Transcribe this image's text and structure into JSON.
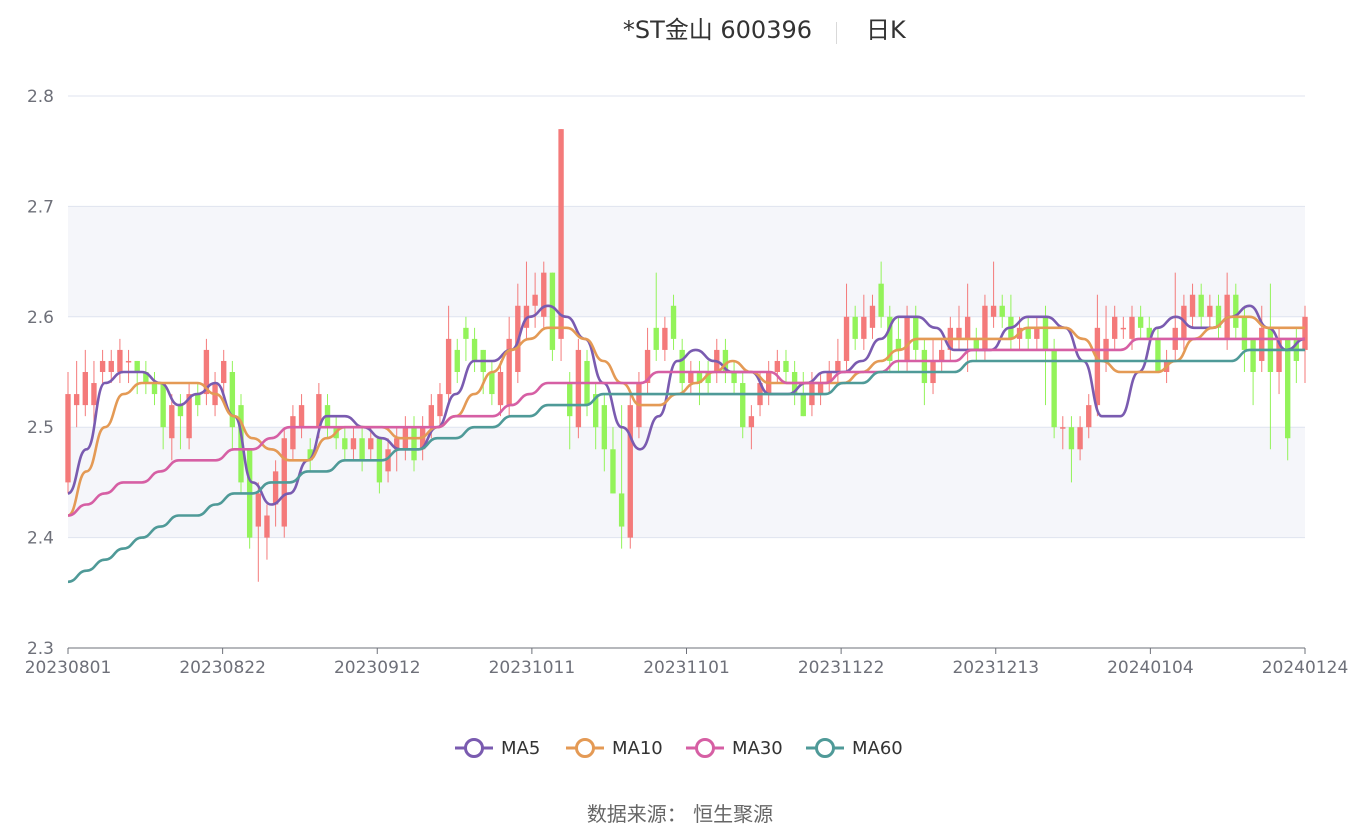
{
  "header": {
    "title": "*ST金山 600396",
    "subtitle": "日K"
  },
  "footer": {
    "source": "数据来源：  恒生聚源"
  },
  "colors": {
    "up": "#f47a7a",
    "down": "#93f35a",
    "ma5": "#7a5bb0",
    "ma10": "#e49a55",
    "ma30": "#d65fa4",
    "ma60": "#4f9a98",
    "grid": "#dfe3ef",
    "band": "#f5f6fa"
  },
  "chart_data": {
    "type": "candlestick",
    "title": "*ST金山 600396",
    "subtitle": "日K",
    "ylim": [
      2.3,
      2.8
    ],
    "y_ticks": [
      2.3,
      2.4,
      2.5,
      2.6,
      2.7,
      2.8
    ],
    "x_tick_labels": [
      "20230801",
      "20230822",
      "20230912",
      "20231011",
      "20231101",
      "20231122",
      "20231213",
      "20240104",
      "20240124"
    ],
    "legend": [
      {
        "name": "MA5",
        "color": "#7a5bb0"
      },
      {
        "name": "MA10",
        "color": "#e49a55"
      },
      {
        "name": "MA30",
        "color": "#d65fa4"
      },
      {
        "name": "MA60",
        "color": "#4f9a98"
      }
    ],
    "legend_position": "bottom",
    "grid": true,
    "candles_ohlc": [
      [
        2.45,
        2.53,
        2.44,
        2.55
      ],
      [
        2.52,
        2.53,
        2.5,
        2.56
      ],
      [
        2.52,
        2.55,
        2.51,
        2.57
      ],
      [
        2.52,
        2.54,
        2.5,
        2.56
      ],
      [
        2.55,
        2.56,
        2.54,
        2.57
      ],
      [
        2.55,
        2.56,
        2.54,
        2.57
      ],
      [
        2.55,
        2.57,
        2.54,
        2.58
      ],
      [
        2.56,
        2.56,
        2.54,
        2.57
      ],
      [
        2.56,
        2.55,
        2.53,
        2.56
      ],
      [
        2.55,
        2.54,
        2.53,
        2.56
      ],
      [
        2.54,
        2.53,
        2.52,
        2.55
      ],
      [
        2.54,
        2.5,
        2.48,
        2.54
      ],
      [
        2.49,
        2.52,
        2.47,
        2.53
      ],
      [
        2.52,
        2.51,
        2.48,
        2.53
      ],
      [
        2.49,
        2.53,
        2.48,
        2.54
      ],
      [
        2.53,
        2.52,
        2.51,
        2.54
      ],
      [
        2.53,
        2.57,
        2.52,
        2.58
      ],
      [
        2.52,
        2.54,
        2.51,
        2.55
      ],
      [
        2.54,
        2.56,
        2.53,
        2.57
      ],
      [
        2.55,
        2.5,
        2.48,
        2.56
      ],
      [
        2.52,
        2.45,
        2.44,
        2.53
      ],
      [
        2.48,
        2.4,
        2.39,
        2.48
      ],
      [
        2.41,
        2.44,
        2.36,
        2.45
      ],
      [
        2.4,
        2.42,
        2.38,
        2.43
      ],
      [
        2.43,
        2.46,
        2.41,
        2.47
      ],
      [
        2.41,
        2.49,
        2.4,
        2.5
      ],
      [
        2.48,
        2.51,
        2.47,
        2.52
      ],
      [
        2.5,
        2.52,
        2.49,
        2.53
      ],
      [
        2.48,
        2.47,
        2.46,
        2.49
      ],
      [
        2.5,
        2.53,
        2.49,
        2.54
      ],
      [
        2.52,
        2.5,
        2.49,
        2.53
      ],
      [
        2.5,
        2.49,
        2.48,
        2.51
      ],
      [
        2.49,
        2.48,
        2.47,
        2.5
      ],
      [
        2.48,
        2.49,
        2.47,
        2.5
      ],
      [
        2.49,
        2.47,
        2.46,
        2.5
      ],
      [
        2.48,
        2.49,
        2.47,
        2.5
      ],
      [
        2.49,
        2.45,
        2.44,
        2.49
      ],
      [
        2.46,
        2.48,
        2.45,
        2.49
      ],
      [
        2.48,
        2.49,
        2.46,
        2.5
      ],
      [
        2.48,
        2.5,
        2.47,
        2.51
      ],
      [
        2.5,
        2.47,
        2.46,
        2.51
      ],
      [
        2.48,
        2.5,
        2.47,
        2.51
      ],
      [
        2.5,
        2.52,
        2.49,
        2.53
      ],
      [
        2.51,
        2.53,
        2.5,
        2.54
      ],
      [
        2.53,
        2.58,
        2.52,
        2.61
      ],
      [
        2.57,
        2.55,
        2.54,
        2.58
      ],
      [
        2.59,
        2.58,
        2.56,
        2.6
      ],
      [
        2.58,
        2.56,
        2.55,
        2.59
      ],
      [
        2.57,
        2.55,
        2.53,
        2.57
      ],
      [
        2.55,
        2.53,
        2.52,
        2.56
      ],
      [
        2.52,
        2.55,
        2.51,
        2.56
      ],
      [
        2.52,
        2.58,
        2.51,
        2.6
      ],
      [
        2.55,
        2.61,
        2.54,
        2.63
      ],
      [
        2.59,
        2.61,
        2.58,
        2.65
      ],
      [
        2.61,
        2.62,
        2.59,
        2.64
      ],
      [
        2.6,
        2.64,
        2.59,
        2.65
      ],
      [
        2.64,
        2.57,
        2.56,
        2.64
      ],
      [
        2.58,
        2.77,
        2.56,
        2.77
      ],
      [
        2.54,
        2.51,
        2.48,
        2.55
      ],
      [
        2.5,
        2.57,
        2.49,
        2.58
      ],
      [
        2.56,
        2.52,
        2.51,
        2.57
      ],
      [
        2.53,
        2.5,
        2.48,
        2.54
      ],
      [
        2.52,
        2.48,
        2.46,
        2.53
      ],
      [
        2.48,
        2.44,
        2.44,
        2.5
      ],
      [
        2.44,
        2.41,
        2.39,
        2.52
      ],
      [
        2.4,
        2.52,
        2.39,
        2.53
      ],
      [
        2.5,
        2.54,
        2.49,
        2.55
      ],
      [
        2.54,
        2.57,
        2.53,
        2.59
      ],
      [
        2.59,
        2.57,
        2.56,
        2.64
      ],
      [
        2.57,
        2.59,
        2.56,
        2.6
      ],
      [
        2.61,
        2.58,
        2.57,
        2.62
      ],
      [
        2.57,
        2.54,
        2.53,
        2.58
      ],
      [
        2.54,
        2.55,
        2.53,
        2.56
      ],
      [
        2.55,
        2.54,
        2.52,
        2.56
      ],
      [
        2.55,
        2.54,
        2.53,
        2.56
      ],
      [
        2.55,
        2.57,
        2.54,
        2.58
      ],
      [
        2.57,
        2.55,
        2.54,
        2.58
      ],
      [
        2.55,
        2.54,
        2.53,
        2.56
      ],
      [
        2.54,
        2.5,
        2.49,
        2.55
      ],
      [
        2.5,
        2.51,
        2.48,
        2.52
      ],
      [
        2.52,
        2.54,
        2.51,
        2.55
      ],
      [
        2.53,
        2.55,
        2.52,
        2.56
      ],
      [
        2.55,
        2.56,
        2.54,
        2.57
      ],
      [
        2.56,
        2.55,
        2.54,
        2.57
      ],
      [
        2.55,
        2.53,
        2.52,
        2.56
      ],
      [
        2.53,
        2.51,
        2.51,
        2.55
      ],
      [
        2.52,
        2.54,
        2.51,
        2.55
      ],
      [
        2.53,
        2.54,
        2.52,
        2.55
      ],
      [
        2.54,
        2.55,
        2.53,
        2.56
      ],
      [
        2.55,
        2.56,
        2.54,
        2.58
      ],
      [
        2.56,
        2.6,
        2.55,
        2.63
      ],
      [
        2.6,
        2.58,
        2.57,
        2.61
      ],
      [
        2.58,
        2.6,
        2.57,
        2.62
      ],
      [
        2.59,
        2.61,
        2.58,
        2.62
      ],
      [
        2.63,
        2.6,
        2.59,
        2.65
      ],
      [
        2.6,
        2.56,
        2.55,
        2.61
      ],
      [
        2.58,
        2.57,
        2.55,
        2.6
      ],
      [
        2.56,
        2.6,
        2.55,
        2.61
      ],
      [
        2.6,
        2.57,
        2.56,
        2.61
      ],
      [
        2.57,
        2.54,
        2.52,
        2.58
      ],
      [
        2.54,
        2.56,
        2.53,
        2.58
      ],
      [
        2.56,
        2.57,
        2.55,
        2.58
      ],
      [
        2.57,
        2.59,
        2.56,
        2.6
      ],
      [
        2.58,
        2.59,
        2.57,
        2.61
      ],
      [
        2.58,
        2.6,
        2.55,
        2.63
      ],
      [
        2.58,
        2.57,
        2.56,
        2.59
      ],
      [
        2.57,
        2.61,
        2.56,
        2.62
      ],
      [
        2.6,
        2.61,
        2.59,
        2.65
      ],
      [
        2.61,
        2.6,
        2.59,
        2.62
      ],
      [
        2.6,
        2.58,
        2.57,
        2.62
      ],
      [
        2.58,
        2.59,
        2.57,
        2.6
      ],
      [
        2.59,
        2.58,
        2.57,
        2.6
      ],
      [
        2.58,
        2.59,
        2.57,
        2.6
      ],
      [
        2.6,
        2.57,
        2.52,
        2.61
      ],
      [
        2.57,
        2.5,
        2.49,
        2.58
      ],
      [
        2.5,
        2.5,
        2.48,
        2.51
      ],
      [
        2.5,
        2.48,
        2.45,
        2.51
      ],
      [
        2.48,
        2.5,
        2.47,
        2.51
      ],
      [
        2.5,
        2.52,
        2.49,
        2.53
      ],
      [
        2.52,
        2.59,
        2.51,
        2.62
      ],
      [
        2.56,
        2.58,
        2.55,
        2.61
      ],
      [
        2.58,
        2.6,
        2.57,
        2.61
      ],
      [
        2.59,
        2.59,
        2.58,
        2.6
      ],
      [
        2.58,
        2.6,
        2.57,
        2.61
      ],
      [
        2.6,
        2.59,
        2.58,
        2.61
      ],
      [
        2.59,
        2.58,
        2.57,
        2.6
      ],
      [
        2.58,
        2.55,
        2.55,
        2.59
      ],
      [
        2.55,
        2.56,
        2.54,
        2.57
      ],
      [
        2.57,
        2.59,
        2.56,
        2.64
      ],
      [
        2.58,
        2.61,
        2.57,
        2.62
      ],
      [
        2.6,
        2.62,
        2.59,
        2.63
      ],
      [
        2.62,
        2.6,
        2.59,
        2.63
      ],
      [
        2.6,
        2.61,
        2.59,
        2.62
      ],
      [
        2.61,
        2.59,
        2.58,
        2.62
      ],
      [
        2.58,
        2.62,
        2.57,
        2.64
      ],
      [
        2.62,
        2.59,
        2.58,
        2.63
      ],
      [
        2.6,
        2.57,
        2.55,
        2.61
      ],
      [
        2.58,
        2.55,
        2.52,
        2.58
      ],
      [
        2.56,
        2.59,
        2.55,
        2.61
      ],
      [
        2.59,
        2.55,
        2.48,
        2.63
      ],
      [
        2.55,
        2.58,
        2.53,
        2.59
      ],
      [
        2.58,
        2.49,
        2.47,
        2.58
      ],
      [
        2.58,
        2.56,
        2.54,
        2.59
      ],
      [
        2.57,
        2.6,
        2.54,
        2.61
      ]
    ],
    "ma5": [
      2.44,
      2.48,
      2.54,
      2.55,
      2.55,
      2.54,
      2.52,
      2.53,
      2.54,
      2.51,
      2.45,
      2.43,
      2.44,
      2.47,
      2.51,
      2.51,
      2.5,
      2.49,
      2.48,
      2.48,
      2.5,
      2.53,
      2.56,
      2.56,
      2.57,
      2.6,
      2.61,
      2.6,
      2.58,
      2.54,
      2.5,
      2.48,
      2.51,
      2.56,
      2.57,
      2.56,
      2.55,
      2.55,
      2.53,
      2.53,
      2.54,
      2.55,
      2.55,
      2.56,
      2.58,
      2.6,
      2.6,
      2.59,
      2.57,
      2.57,
      2.57,
      2.59,
      2.6,
      2.6,
      2.59,
      2.56,
      2.51,
      2.51,
      2.55,
      2.59,
      2.6,
      2.59,
      2.59,
      2.6,
      2.61,
      2.59,
      2.57,
      2.58
    ],
    "ma10": [
      2.42,
      2.46,
      2.5,
      2.53,
      2.54,
      2.54,
      2.54,
      2.54,
      2.53,
      2.51,
      2.49,
      2.48,
      2.47,
      2.47,
      2.49,
      2.5,
      2.5,
      2.5,
      2.49,
      2.49,
      2.5,
      2.51,
      2.53,
      2.55,
      2.57,
      2.58,
      2.59,
      2.59,
      2.58,
      2.56,
      2.54,
      2.52,
      2.52,
      2.53,
      2.54,
      2.55,
      2.56,
      2.55,
      2.54,
      2.54,
      2.54,
      2.54,
      2.54,
      2.55,
      2.56,
      2.57,
      2.58,
      2.58,
      2.58,
      2.58,
      2.58,
      2.58,
      2.59,
      2.59,
      2.59,
      2.58,
      2.56,
      2.55,
      2.55,
      2.55,
      2.56,
      2.58,
      2.59,
      2.6,
      2.6,
      2.59,
      2.59,
      2.59
    ],
    "ma30": [
      2.42,
      2.43,
      2.44,
      2.45,
      2.45,
      2.46,
      2.47,
      2.47,
      2.47,
      2.48,
      2.48,
      2.49,
      2.5,
      2.5,
      2.5,
      2.5,
      2.5,
      2.5,
      2.5,
      2.5,
      2.5,
      2.51,
      2.51,
      2.51,
      2.52,
      2.53,
      2.54,
      2.54,
      2.54,
      2.54,
      2.54,
      2.54,
      2.55,
      2.55,
      2.55,
      2.55,
      2.55,
      2.55,
      2.55,
      2.54,
      2.54,
      2.54,
      2.55,
      2.55,
      2.55,
      2.56,
      2.56,
      2.56,
      2.56,
      2.57,
      2.57,
      2.57,
      2.57,
      2.57,
      2.57,
      2.57,
      2.57,
      2.57,
      2.58,
      2.58,
      2.58,
      2.58,
      2.58,
      2.58,
      2.58,
      2.58,
      2.58,
      2.58
    ],
    "ma60": [
      2.36,
      2.37,
      2.38,
      2.39,
      2.4,
      2.41,
      2.42,
      2.42,
      2.43,
      2.44,
      2.44,
      2.45,
      2.45,
      2.46,
      2.46,
      2.47,
      2.47,
      2.47,
      2.48,
      2.48,
      2.49,
      2.49,
      2.5,
      2.5,
      2.51,
      2.51,
      2.52,
      2.52,
      2.52,
      2.53,
      2.53,
      2.53,
      2.53,
      2.53,
      2.53,
      2.53,
      2.53,
      2.53,
      2.53,
      2.53,
      2.53,
      2.53,
      2.54,
      2.54,
      2.55,
      2.55,
      2.55,
      2.55,
      2.55,
      2.56,
      2.56,
      2.56,
      2.56,
      2.56,
      2.56,
      2.56,
      2.56,
      2.56,
      2.56,
      2.56,
      2.56,
      2.56,
      2.56,
      2.56,
      2.57,
      2.57,
      2.57,
      2.57
    ]
  }
}
